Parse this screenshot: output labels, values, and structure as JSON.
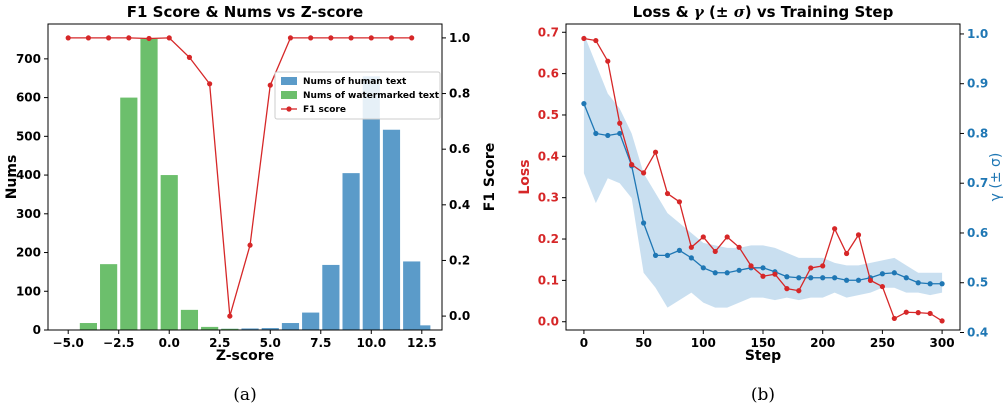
{
  "chart_data": [
    {
      "type": "bar+line",
      "title": "F1 Score & Nums vs Z-score",
      "xlabel": "Z-score",
      "ylabel": "Nums",
      "y2label": "F1 Score",
      "xlim": [
        -6,
        13.5
      ],
      "ylim": [
        0,
        790
      ],
      "y2lim": [
        -0.05,
        1.05
      ],
      "xticks": [
        -5.0,
        -2.5,
        0.0,
        2.5,
        5.0,
        7.5,
        10.0,
        12.5
      ],
      "xtick_labels": [
        "−5.0",
        "−2.5",
        "0.0",
        "2.5",
        "5.0",
        "7.5",
        "10.0",
        "12.5"
      ],
      "yticks": [
        0,
        100,
        200,
        300,
        400,
        500,
        600,
        700
      ],
      "y2ticks": [
        0.0,
        0.2,
        0.4,
        0.6,
        0.8,
        1.0
      ],
      "y2tick_labels": [
        "0.0",
        "0.2",
        "0.4",
        "0.6",
        "0.8",
        "1.0"
      ],
      "bar_width": 0.85,
      "legend_position": "upper-right",
      "grid": false,
      "bar_series": [
        {
          "name": "Nums of human text",
          "color": "#5b9bc9",
          "x": [
            2,
            3,
            4,
            5,
            6,
            7,
            8,
            9,
            10,
            11,
            12
          ],
          "values": [
            2,
            3,
            4,
            5,
            18,
            45,
            168,
            405,
            655,
            517,
            177
          ]
        },
        {
          "name": "Nums of watermarked text",
          "color": "#6cbf6c",
          "x": [
            -4,
            -3,
            -2,
            -1,
            0,
            1,
            2,
            3
          ],
          "values": [
            18,
            170,
            600,
            752,
            400,
            52,
            8,
            3
          ]
        },
        {
          "name": "",
          "color": "#5b9bc9",
          "x": [
            12.5
          ],
          "values": [
            12
          ]
        }
      ],
      "line_series": [
        {
          "name": "F1 score",
          "color": "#d62728",
          "x": [
            -5,
            -4,
            -3,
            -2,
            -1,
            0,
            1,
            2,
            3,
            4,
            5,
            6,
            7,
            8,
            9,
            10,
            11,
            12
          ],
          "values": [
            1.0,
            1.0,
            1.0,
            1.0,
            0.998,
            1.0,
            0.93,
            0.835,
            0.0,
            0.255,
            0.83,
            1.0,
            1.0,
            1.0,
            1.0,
            1.0,
            1.0,
            1.0
          ]
        }
      ]
    },
    {
      "type": "line",
      "title": "Loss & γ (± σ) vs Training Step",
      "title_main": "Loss & ",
      "title_gamma": "γ",
      "title_rest": " (± ",
      "title_sigma": "σ",
      "title_end": ") vs Training Step",
      "xlabel": "Step",
      "ylabel": "Loss",
      "y2label": "γ (± σ)",
      "xlim": [
        -15,
        315
      ],
      "ylim": [
        -0.02,
        0.72
      ],
      "y2lim": [
        0.405,
        1.02
      ],
      "xticks": [
        0,
        50,
        100,
        150,
        200,
        250,
        300
      ],
      "xtick_labels": [
        "0",
        "50",
        "100",
        "150",
        "200",
        "250",
        "300"
      ],
      "yticks": [
        0.0,
        0.1,
        0.2,
        0.3,
        0.4,
        0.5,
        0.6,
        0.7
      ],
      "ytick_labels": [
        "0.0",
        "0.1",
        "0.2",
        "0.3",
        "0.4",
        "0.5",
        "0.6",
        "0.7"
      ],
      "y2ticks": [
        0.4,
        0.5,
        0.6,
        0.7,
        0.8,
        0.9,
        1.0
      ],
      "y2tick_labels": [
        "0.4",
        "0.5",
        "0.6",
        "0.7",
        "0.8",
        "0.9",
        "1.0"
      ],
      "loss_color": "#d62728",
      "gamma_color": "#1f77b4",
      "band_color": "#bcd7ec",
      "grid": false,
      "x": [
        0,
        10,
        20,
        30,
        40,
        50,
        60,
        70,
        80,
        90,
        100,
        110,
        120,
        130,
        140,
        150,
        160,
        170,
        180,
        190,
        200,
        210,
        220,
        230,
        240,
        250,
        260,
        270,
        280,
        290,
        300
      ],
      "loss": [
        0.685,
        0.68,
        0.63,
        0.48,
        0.38,
        0.36,
        0.41,
        0.31,
        0.29,
        0.18,
        0.205,
        0.17,
        0.205,
        0.18,
        0.135,
        0.11,
        0.115,
        0.08,
        0.075,
        0.13,
        0.135,
        0.225,
        0.165,
        0.21,
        0.1,
        0.085,
        0.008,
        0.023,
        0.022,
        0.02,
        0.002
      ],
      "gamma": [
        0.86,
        0.8,
        0.796,
        0.8,
        0.735,
        0.62,
        0.555,
        0.555,
        0.565,
        0.55,
        0.53,
        0.52,
        0.52,
        0.525,
        0.53,
        0.53,
        0.522,
        0.512,
        0.51,
        0.51,
        0.51,
        0.51,
        0.505,
        0.505,
        0.51,
        0.518,
        0.52,
        0.51,
        0.5,
        0.498,
        0.498
      ],
      "gamma_upper": [
        1.0,
        0.94,
        0.88,
        0.85,
        0.8,
        0.72,
        0.68,
        0.64,
        0.62,
        0.6,
        0.58,
        0.575,
        0.57,
        0.57,
        0.575,
        0.575,
        0.57,
        0.56,
        0.55,
        0.55,
        0.55,
        0.54,
        0.535,
        0.535,
        0.54,
        0.545,
        0.55,
        0.535,
        0.52,
        0.52,
        0.52
      ],
      "gamma_lower": [
        0.72,
        0.66,
        0.71,
        0.7,
        0.67,
        0.52,
        0.49,
        0.45,
        0.465,
        0.48,
        0.46,
        0.45,
        0.45,
        0.46,
        0.47,
        0.47,
        0.465,
        0.47,
        0.465,
        0.47,
        0.47,
        0.48,
        0.47,
        0.475,
        0.48,
        0.49,
        0.49,
        0.48,
        0.48,
        0.475,
        0.48
      ]
    }
  ],
  "captions": [
    "(a)",
    "(b)"
  ]
}
